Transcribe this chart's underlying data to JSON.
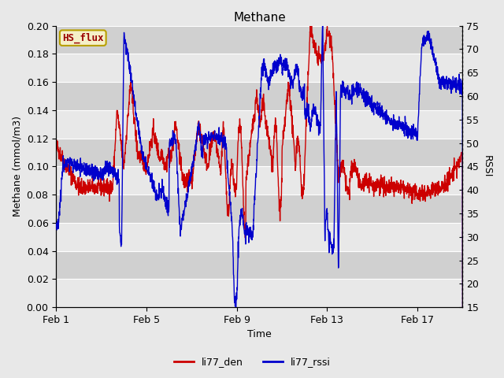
{
  "title": "Methane",
  "xlabel": "Time",
  "ylabel_left": "Methane (mmol/m3)",
  "ylabel_right": "RSSI",
  "ylim_left": [
    0.0,
    0.2
  ],
  "ylim_right": [
    15,
    75
  ],
  "yticks_left": [
    0.0,
    0.02,
    0.04,
    0.06,
    0.08,
    0.1,
    0.12,
    0.14,
    0.16,
    0.18,
    0.2
  ],
  "yticks_right": [
    15,
    20,
    25,
    30,
    35,
    40,
    45,
    50,
    55,
    60,
    65,
    70,
    75
  ],
  "xtick_labels": [
    "Feb 1",
    "Feb 5",
    "Feb 9",
    "Feb 13",
    "Feb 17"
  ],
  "xtick_positions": [
    1,
    5,
    9,
    13,
    17
  ],
  "color_den": "#cc0000",
  "color_rssi": "#0000cc",
  "fig_bg": "#e8e8e8",
  "plot_bg": "#d8d8d8",
  "band_light": "#e8e8e8",
  "band_dark": "#d0d0d0",
  "legend_box_color": "#f5f0c8",
  "legend_box_edge": "#b8a000",
  "legend_text": "HS_flux",
  "legend_text_color": "#990000",
  "line_width": 1.0,
  "title_fontsize": 11,
  "label_fontsize": 9,
  "tick_fontsize": 9
}
